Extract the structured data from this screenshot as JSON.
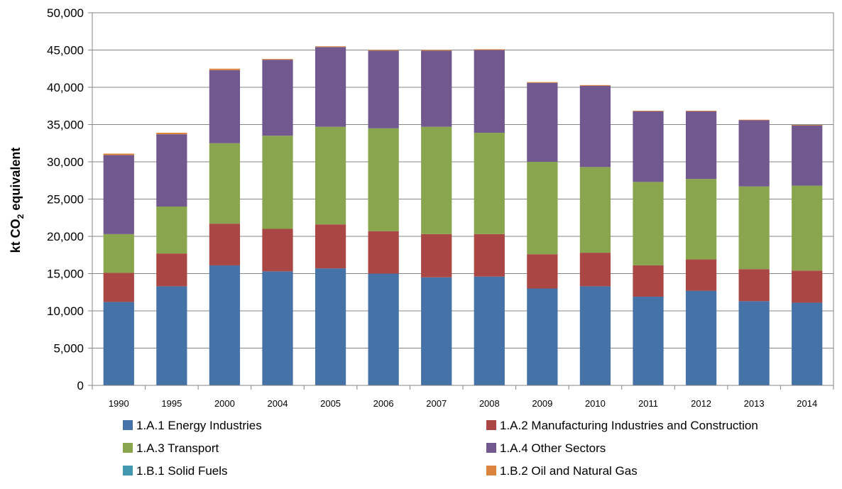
{
  "chart_data": {
    "type": "bar",
    "stacked": true,
    "categories": [
      "1990",
      "1995",
      "2000",
      "2004",
      "2005",
      "2006",
      "2007",
      "2008",
      "2009",
      "2010",
      "2011",
      "2012",
      "2013",
      "2014"
    ],
    "series": [
      {
        "name": "1.A.1 Energy Industries",
        "color": "#4572A7",
        "values": [
          11200,
          13300,
          16100,
          15300,
          15700,
          15000,
          14500,
          14600,
          13000,
          13300,
          11900,
          12700,
          11300,
          11100
        ]
      },
      {
        "name": "1.A.2 Manufacturing Industries and Construction",
        "color": "#AA4643",
        "values": [
          3900,
          4400,
          5600,
          5700,
          5900,
          5700,
          5800,
          5700,
          4600,
          4500,
          4200,
          4200,
          4300,
          4300
        ]
      },
      {
        "name": "1.A.3 Transport",
        "color": "#89A54E",
        "values": [
          5200,
          6300,
          10800,
          12500,
          13100,
          13800,
          14400,
          13600,
          12400,
          11500,
          11200,
          10800,
          11100,
          11400
        ]
      },
      {
        "name": "1.A.4 Other Sectors",
        "color": "#71588F",
        "values": [
          10600,
          9700,
          9800,
          10200,
          10700,
          10400,
          10200,
          11100,
          10600,
          10900,
          9500,
          9100,
          8900,
          8100
        ]
      },
      {
        "name": "1.B.1 Solid Fuels",
        "color": "#4198AF",
        "values": [
          0,
          0,
          0,
          0,
          0,
          0,
          0,
          0,
          0,
          0,
          0,
          0,
          0,
          0
        ]
      },
      {
        "name": "1.B.2 Oil and Natural Gas",
        "color": "#DB843D",
        "values": [
          200,
          200,
          200,
          100,
          100,
          100,
          100,
          100,
          100,
          100,
          50,
          50,
          50,
          50
        ]
      }
    ],
    "ylim": [
      0,
      50000
    ],
    "yticks": [
      "0",
      "5,000",
      "10,000",
      "15,000",
      "20,000",
      "25,000",
      "30,000",
      "35,000",
      "40,000",
      "45,000",
      "50,000"
    ],
    "ylabel": {
      "prefix": "kt  CO",
      "subscript": "2",
      "suffix": " equivalent"
    },
    "xlabel": "",
    "grid": true,
    "legend_position": "bottom"
  }
}
